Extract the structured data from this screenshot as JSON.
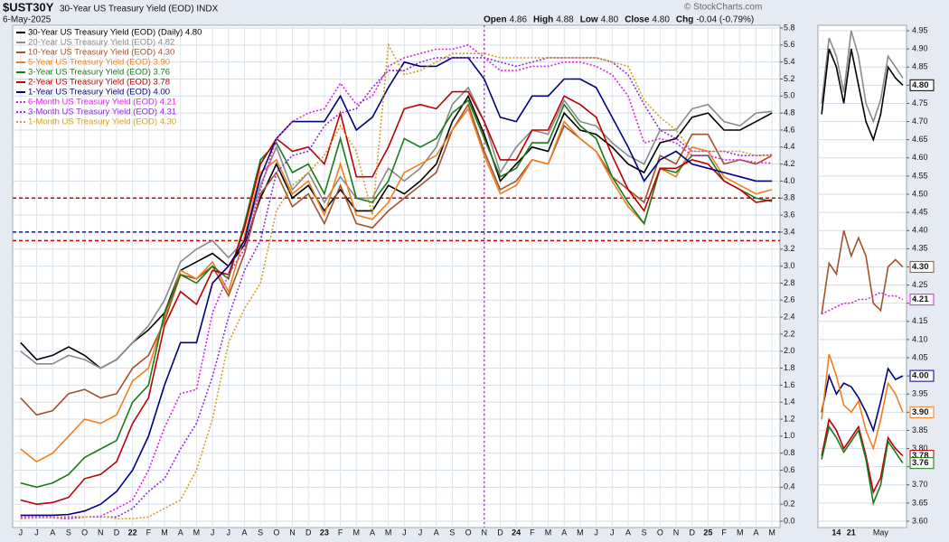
{
  "header": {
    "symbol": "$UST30Y",
    "description": "30-Year US Treasury Yield (EOD) INDX",
    "date": "6-May-2025",
    "watermark": "© StockCharts.com",
    "quote": [
      {
        "label": "Open",
        "value": "4.86"
      },
      {
        "label": "High",
        "value": "4.88"
      },
      {
        "label": "Low",
        "value": "4.80"
      },
      {
        "label": "Close",
        "value": "4.80"
      },
      {
        "label": "Chg",
        "value": "-0.04 (-0.79%)"
      }
    ]
  },
  "chart_data": [
    {
      "type": "line",
      "categories": [
        "J",
        "J",
        "A",
        "S",
        "O",
        "N",
        "D",
        "22",
        "F",
        "M",
        "A",
        "M",
        "J",
        "J",
        "A",
        "S",
        "O",
        "N",
        "D",
        "23",
        "F",
        "M",
        "A",
        "M",
        "J",
        "J",
        "A",
        "S",
        "O",
        "N",
        "D",
        "24",
        "F",
        "M",
        "A",
        "M",
        "J",
        "J",
        "A",
        "S",
        "O",
        "N",
        "D",
        "25",
        "F",
        "M",
        "A",
        "M"
      ],
      "ylim": [
        0,
        5.8
      ],
      "yticks": [
        {
          "value": 0,
          "label": "0.0"
        },
        0.2,
        0.4,
        0.6,
        0.8,
        {
          "value": 1,
          "label": "1.0"
        },
        1.2,
        1.4,
        1.6,
        1.8,
        {
          "value": 2,
          "label": "2.0"
        },
        2.2,
        2.4,
        2.6,
        2.8,
        {
          "value": 3,
          "label": "3.0"
        },
        3.2,
        3.4,
        3.6,
        3.8,
        {
          "value": 4,
          "label": "4.0"
        },
        4.2,
        4.4,
        4.6,
        4.8,
        {
          "value": 5,
          "label": "5.0"
        },
        5.2,
        5.4,
        5.6,
        5.8
      ],
      "grid": true,
      "legend": "upper left",
      "hlines": [
        {
          "value": 3.8,
          "color": "#cc0000"
        },
        {
          "value": 3.4,
          "color": "#1a1a80"
        },
        {
          "value": 3.3,
          "color": "#cc0000"
        }
      ],
      "vline": {
        "index": 29,
        "color": "#e020e0"
      },
      "series": [
        {
          "name": "30-Year US Treasury Yield (EOD) (Daily) 4.80",
          "color": "#000000",
          "values": [
            2.1,
            1.9,
            1.95,
            2.05,
            1.95,
            1.8,
            1.9,
            2.1,
            2.25,
            2.45,
            2.95,
            3.05,
            3.15,
            3.0,
            3.25,
            3.8,
            4.2,
            3.8,
            3.95,
            3.65,
            3.9,
            3.65,
            3.65,
            3.95,
            3.85,
            4.0,
            4.2,
            4.7,
            5.0,
            4.55,
            4.0,
            4.2,
            4.4,
            4.35,
            4.8,
            4.6,
            4.55,
            4.4,
            4.2,
            4.1,
            4.45,
            4.5,
            4.75,
            4.8,
            4.6,
            4.6,
            4.7,
            4.8
          ]
        },
        {
          "name": "20-Year US Treasury Yield (EOD) 4.82",
          "color": "#8a8a8a",
          "values": [
            2.0,
            1.85,
            1.85,
            1.95,
            1.9,
            1.8,
            1.9,
            2.1,
            2.3,
            2.6,
            3.05,
            3.2,
            3.3,
            3.1,
            3.3,
            3.95,
            4.4,
            3.9,
            4.1,
            3.75,
            4.05,
            3.8,
            3.8,
            4.15,
            4.0,
            4.15,
            4.4,
            4.9,
            5.1,
            4.7,
            4.1,
            4.4,
            4.6,
            4.55,
            4.95,
            4.7,
            4.65,
            4.45,
            4.3,
            4.2,
            4.6,
            4.6,
            4.85,
            4.9,
            4.7,
            4.65,
            4.8,
            4.82
          ]
        },
        {
          "name": "10-Year US Treasury Yield (EOD) 4.30",
          "color": "#a0522d",
          "values": [
            1.45,
            1.25,
            1.3,
            1.5,
            1.55,
            1.45,
            1.5,
            1.8,
            1.95,
            2.35,
            2.9,
            2.85,
            3.0,
            2.65,
            3.15,
            3.85,
            4.1,
            3.7,
            3.85,
            3.5,
            3.95,
            3.5,
            3.45,
            3.65,
            3.8,
            3.95,
            4.1,
            4.6,
            4.9,
            4.35,
            3.9,
            4.0,
            4.25,
            4.2,
            4.65,
            4.5,
            4.35,
            4.05,
            3.9,
            3.75,
            4.3,
            4.2,
            4.55,
            4.55,
            4.2,
            4.25,
            4.2,
            4.3
          ]
        },
        {
          "name": "5-Year US Treasury Yield (EOD) 3.90",
          "color": "#f07f1a",
          "values": [
            0.85,
            0.7,
            0.8,
            1.0,
            1.2,
            1.15,
            1.25,
            1.65,
            1.8,
            2.4,
            2.95,
            2.85,
            3.05,
            2.7,
            3.35,
            4.1,
            4.25,
            3.85,
            4.0,
            3.6,
            4.2,
            3.6,
            3.55,
            3.75,
            4.1,
            4.2,
            4.3,
            4.6,
            4.85,
            4.3,
            3.85,
            3.95,
            4.25,
            4.2,
            4.7,
            4.5,
            4.35,
            4.0,
            3.7,
            3.5,
            4.15,
            4.05,
            4.4,
            4.35,
            4.05,
            3.95,
            3.85,
            3.9
          ]
        },
        {
          "name": "3-Year US Treasury Yield (EOD) 3.76",
          "color": "#1a7a1a",
          "values": [
            0.45,
            0.4,
            0.45,
            0.55,
            0.75,
            0.85,
            0.95,
            1.4,
            1.6,
            2.45,
            2.9,
            2.8,
            3.0,
            2.85,
            3.5,
            4.25,
            4.45,
            4.1,
            4.2,
            3.85,
            4.5,
            3.8,
            3.75,
            4.0,
            4.5,
            4.4,
            4.5,
            4.8,
            4.95,
            4.5,
            4.05,
            4.15,
            4.45,
            4.45,
            4.9,
            4.65,
            4.5,
            4.05,
            3.75,
            3.5,
            4.15,
            4.1,
            4.3,
            4.3,
            4.0,
            3.9,
            3.8,
            3.76
          ]
        },
        {
          "name": "2-Year US Treasury Yield (EOD) 3.78",
          "color": "#bb0000",
          "values": [
            0.25,
            0.2,
            0.22,
            0.28,
            0.5,
            0.55,
            0.7,
            1.15,
            1.45,
            2.3,
            2.7,
            2.55,
            2.95,
            2.9,
            3.45,
            4.2,
            4.5,
            4.35,
            4.4,
            4.2,
            4.8,
            4.05,
            4.05,
            4.4,
            4.85,
            4.9,
            4.85,
            5.05,
            5.05,
            4.7,
            4.25,
            4.25,
            4.6,
            4.6,
            5.0,
            4.9,
            4.75,
            4.3,
            3.9,
            3.65,
            4.15,
            4.15,
            4.25,
            4.2,
            4.0,
            3.9,
            3.75,
            3.78
          ]
        },
        {
          "name": "1-Year US Treasury Yield (EOD) 4.00",
          "color": "#00007a",
          "values": [
            0.07,
            0.07,
            0.07,
            0.08,
            0.12,
            0.2,
            0.35,
            0.6,
            1.0,
            1.6,
            2.1,
            2.1,
            2.8,
            3.0,
            3.3,
            4.05,
            4.5,
            4.7,
            4.7,
            4.7,
            5.0,
            4.6,
            4.75,
            5.1,
            5.4,
            5.35,
            5.35,
            5.45,
            5.45,
            5.2,
            4.75,
            4.7,
            5.0,
            5.0,
            5.2,
            5.2,
            5.1,
            4.75,
            4.4,
            4.0,
            4.25,
            4.35,
            4.2,
            4.15,
            4.1,
            4.05,
            4.0,
            4.0
          ]
        },
        {
          "name": "6-Month US Treasury Yield (EOD) 4.21",
          "color": "#e020e0",
          "dash": "dotted",
          "values": [
            0.05,
            0.05,
            0.05,
            0.05,
            0.05,
            0.06,
            0.15,
            0.25,
            0.6,
            1.1,
            1.5,
            1.55,
            2.45,
            2.9,
            3.2,
            3.9,
            4.5,
            4.7,
            4.8,
            4.85,
            5.15,
            4.9,
            5.0,
            5.35,
            5.45,
            5.5,
            5.55,
            5.55,
            5.6,
            5.45,
            5.3,
            5.3,
            5.35,
            5.35,
            5.4,
            5.4,
            5.35,
            5.25,
            5.0,
            4.45,
            4.5,
            4.45,
            4.3,
            4.3,
            4.25,
            4.25,
            4.22,
            4.21
          ]
        },
        {
          "name": "3-Month US Treasury Yield (EOD) 4.31",
          "color": "#8a2be2",
          "dash": "dotted",
          "values": [
            0.03,
            0.04,
            0.04,
            0.03,
            0.05,
            0.05,
            0.05,
            0.15,
            0.35,
            0.5,
            0.85,
            1.15,
            1.7,
            2.4,
            2.95,
            3.3,
            4.1,
            4.3,
            4.35,
            4.65,
            4.8,
            4.85,
            5.1,
            5.3,
            5.3,
            5.4,
            5.45,
            5.45,
            5.45,
            5.45,
            5.4,
            5.35,
            5.4,
            5.45,
            5.45,
            5.45,
            5.45,
            5.4,
            5.25,
            4.9,
            4.6,
            4.5,
            4.35,
            4.35,
            4.35,
            4.3,
            4.3,
            4.31
          ]
        },
        {
          "name": "1-Month US Treasury Yield (EOD) 4.30",
          "color": "#d4a020",
          "dash": "dotted",
          "values": [
            0.03,
            0.04,
            0.04,
            0.06,
            0.05,
            0.06,
            0.03,
            0.03,
            0.05,
            0.15,
            0.25,
            0.6,
            1.2,
            2.1,
            2.5,
            2.8,
            3.65,
            3.95,
            4.1,
            4.3,
            4.65,
            4.35,
            3.6,
            5.6,
            5.25,
            5.3,
            5.4,
            5.5,
            5.5,
            5.5,
            5.45,
            5.45,
            5.45,
            5.45,
            5.45,
            5.45,
            5.45,
            5.4,
            5.35,
            4.95,
            4.75,
            4.6,
            4.35,
            4.35,
            4.35,
            4.35,
            4.3,
            4.3
          ]
        }
      ]
    },
    {
      "type": "line",
      "categories": [
        null,
        null,
        "14",
        null,
        "21",
        null,
        null,
        null,
        "May",
        null,
        null,
        null
      ],
      "ylim": [
        3.6,
        4.95
      ],
      "yticks": [
        {
          "value": 3.6,
          "label": "3.60"
        },
        3.65,
        {
          "value": 3.7,
          "label": "3.70"
        },
        3.75,
        {
          "value": 3.8,
          "label": "3.80"
        },
        3.85,
        {
          "value": 3.9,
          "label": "3.90"
        },
        3.95,
        {
          "value": 4,
          "label": "4.00"
        },
        4.05,
        {
          "value": 4.1,
          "label": "4.10"
        },
        4.15,
        {
          "value": 4.2,
          "label": "4.20"
        },
        4.25,
        {
          "value": 4.3,
          "label": "4.30"
        },
        4.35,
        {
          "value": 4.4,
          "label": "4.40"
        },
        4.45,
        {
          "value": 4.5,
          "label": "4.50"
        },
        4.55,
        {
          "value": 4.6,
          "label": "4.60"
        },
        4.65,
        {
          "value": 4.7,
          "label": "4.70"
        },
        4.75,
        {
          "value": 4.8,
          "label": "4.80"
        },
        4.85,
        {
          "value": 4.9,
          "label": "4.90"
        },
        4.95
      ],
      "grid": true,
      "series": [
        {
          "color": "#8a8a8a",
          "values": [
            4.75,
            4.93,
            4.88,
            4.78,
            4.95,
            4.88,
            4.75,
            4.7,
            4.76,
            4.88,
            4.85,
            4.82
          ]
        },
        {
          "color": "#000000",
          "values": [
            4.72,
            4.9,
            4.85,
            4.75,
            4.9,
            4.8,
            4.7,
            4.65,
            4.72,
            4.85,
            4.82,
            4.8
          ],
          "last_label": "4.80"
        },
        {
          "color": "#a0522d",
          "values": [
            4.17,
            4.31,
            4.28,
            4.4,
            4.33,
            4.38,
            4.33,
            4.2,
            4.18,
            4.3,
            4.32,
            4.3
          ],
          "last_label": "4.30"
        },
        {
          "color": "#e020e0",
          "dash": "dotted",
          "values": [
            4.17,
            4.18,
            4.19,
            4.2,
            4.2,
            4.21,
            4.21,
            4.22,
            4.23,
            4.22,
            4.22,
            4.21
          ],
          "last_label": "4.21"
        },
        {
          "color": "#00007a",
          "values": [
            3.9,
            4.0,
            3.95,
            3.98,
            3.97,
            3.94,
            3.9,
            3.85,
            3.93,
            4.02,
            3.99,
            4.0
          ],
          "last_label": "4.00"
        },
        {
          "color": "#f07f1a",
          "values": [
            3.88,
            4.06,
            4.0,
            3.92,
            3.9,
            3.93,
            3.85,
            3.8,
            3.88,
            3.98,
            3.95,
            3.9
          ],
          "last_label": "3.90"
        },
        {
          "color": "#bb0000",
          "values": [
            3.78,
            3.88,
            3.85,
            3.8,
            3.83,
            3.86,
            3.78,
            3.68,
            3.72,
            3.83,
            3.8,
            3.78
          ],
          "last_label": "3.78"
        },
        {
          "color": "#1a7a1a",
          "values": [
            3.77,
            3.86,
            3.83,
            3.79,
            3.82,
            3.85,
            3.77,
            3.65,
            3.7,
            3.82,
            3.79,
            3.76
          ],
          "last_label": "3.76"
        }
      ]
    }
  ]
}
